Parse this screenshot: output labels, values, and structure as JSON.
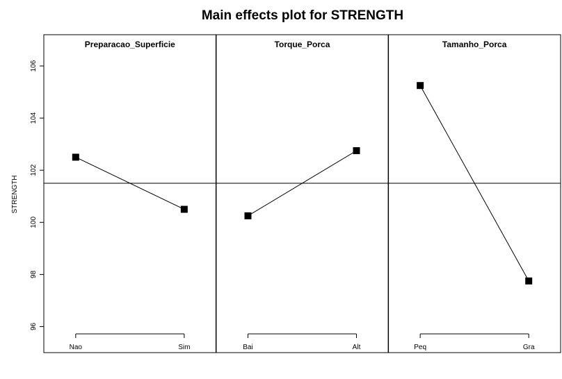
{
  "chart_data": {
    "type": "line",
    "title": "Main effects plot for STRENGTH",
    "ylabel": "STRENGTH",
    "ylim": [
      95,
      107.2
    ],
    "yticks": [
      96,
      98,
      100,
      102,
      104,
      106
    ],
    "grand_mean": 101.5,
    "marker_color": "#000000",
    "panels": [
      {
        "factor": "Preparacao_Superficie",
        "levels": [
          "Nao",
          "Sim"
        ],
        "means": [
          102.5,
          100.5
        ]
      },
      {
        "factor": "Torque_Porca",
        "levels": [
          "Bai",
          "Alt"
        ],
        "means": [
          100.25,
          102.75
        ]
      },
      {
        "factor": "Tamanho_Porca",
        "levels": [
          "Peq",
          "Gra"
        ],
        "means": [
          105.25,
          97.75
        ]
      }
    ]
  }
}
